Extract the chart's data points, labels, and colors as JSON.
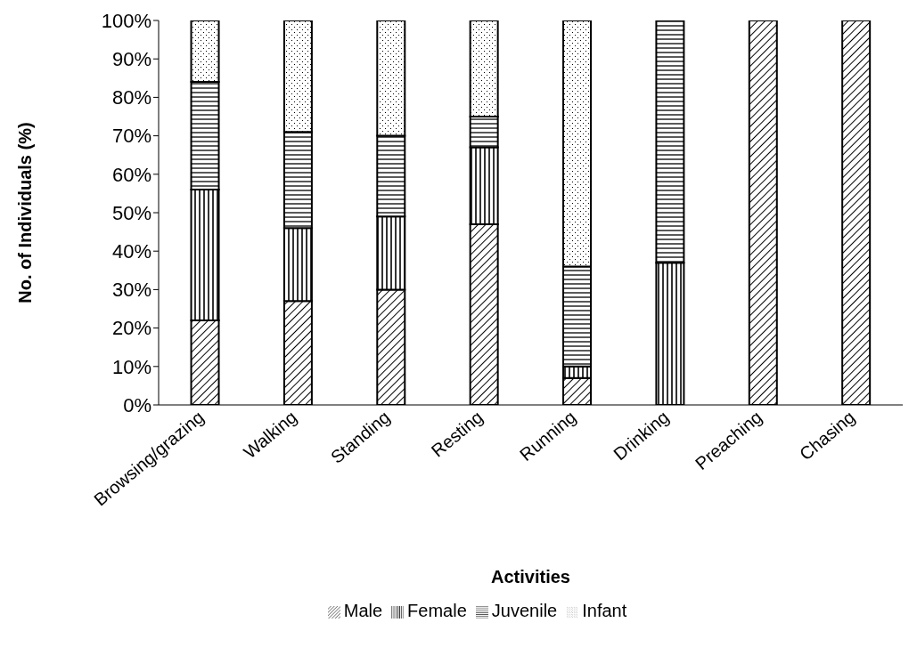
{
  "chart_data": {
    "type": "bar",
    "stacked": true,
    "xlabel": "Activities",
    "ylabel": "No. of Individuals (%)",
    "categories": [
      "Browsing/grazing",
      "Walking",
      "Standing",
      "Resting",
      "Running",
      "Drinking",
      "Preaching",
      "Chasing"
    ],
    "series": [
      {
        "name": "Male",
        "color": "#000000",
        "values": [
          22,
          27,
          30,
          47,
          7,
          0,
          100,
          100
        ]
      },
      {
        "name": "Female",
        "color": "#000000",
        "values": [
          34,
          19,
          19,
          20,
          3,
          37,
          0,
          0
        ]
      },
      {
        "name": "Juvenile",
        "color": "#000000",
        "values": [
          28,
          25,
          21,
          8,
          26,
          63,
          0,
          0
        ]
      },
      {
        "name": "Infant",
        "color": "#000000",
        "values": [
          16,
          29,
          30,
          25,
          64,
          0,
          0,
          0
        ]
      }
    ],
    "ylim": [
      0,
      100
    ],
    "yticks": [
      {
        "value": 0,
        "label": "0%"
      },
      {
        "value": 10,
        "label": "10%"
      },
      {
        "value": 20,
        "label": "20%"
      },
      {
        "value": 30,
        "label": "30%"
      },
      {
        "value": 40,
        "label": "40%"
      },
      {
        "value": 50,
        "label": "50%"
      },
      {
        "value": 60,
        "label": "60%"
      },
      {
        "value": 70,
        "label": "70%"
      },
      {
        "value": 80,
        "label": "80%"
      },
      {
        "value": 90,
        "label": "90%"
      },
      {
        "value": 100,
        "label": "100%"
      }
    ],
    "grid": false,
    "legend": "bottom"
  }
}
